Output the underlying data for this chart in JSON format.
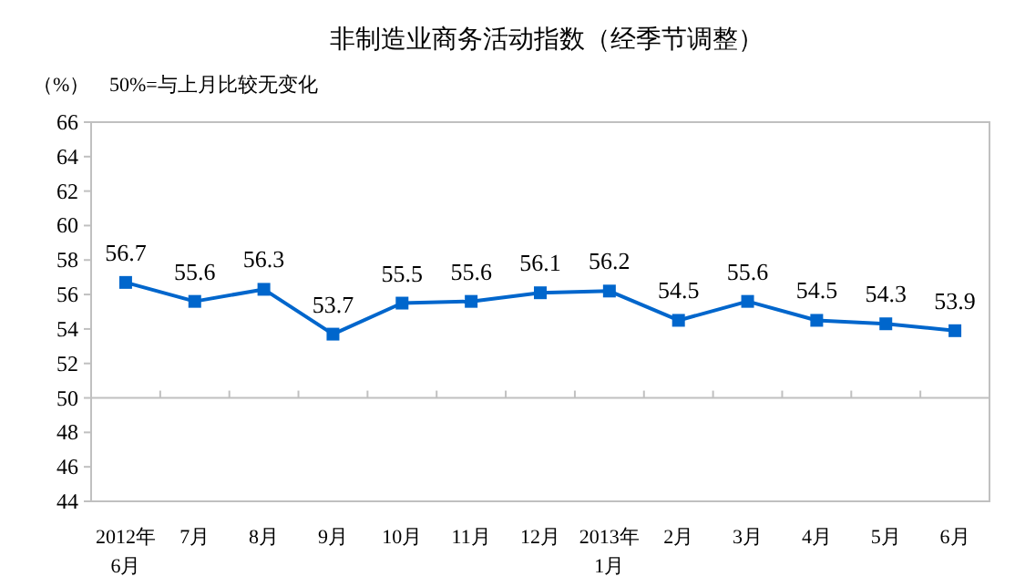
{
  "chart_data": {
    "type": "line",
    "title": "非制造业商务活动指数（经季节调整）",
    "ylabel": "（%）",
    "annotations": [
      "50%=与上月比较无变化"
    ],
    "categories": [
      "2012年\n6月",
      "7月",
      "8月",
      "9月",
      "10月",
      "11月",
      "12月",
      "2013年\n1月",
      "2月",
      "3月",
      "4月",
      "5月",
      "6月"
    ],
    "series": [
      {
        "color": "#0066cc",
        "values": [
          56.7,
          55.6,
          56.3,
          53.7,
          55.5,
          55.6,
          56.1,
          56.2,
          54.5,
          55.6,
          54.5,
          54.3,
          53.9
        ]
      }
    ],
    "ylim": [
      44,
      66
    ],
    "yticks": [
      44,
      46,
      48,
      50,
      52,
      54,
      56,
      58,
      60,
      62,
      64,
      66
    ],
    "ref_lines": [
      {
        "axis": "y",
        "value": 50,
        "color": "#c0c0c0"
      }
    ],
    "data_labels": true,
    "marker": "square",
    "line_style": "solid",
    "grid": false
  }
}
